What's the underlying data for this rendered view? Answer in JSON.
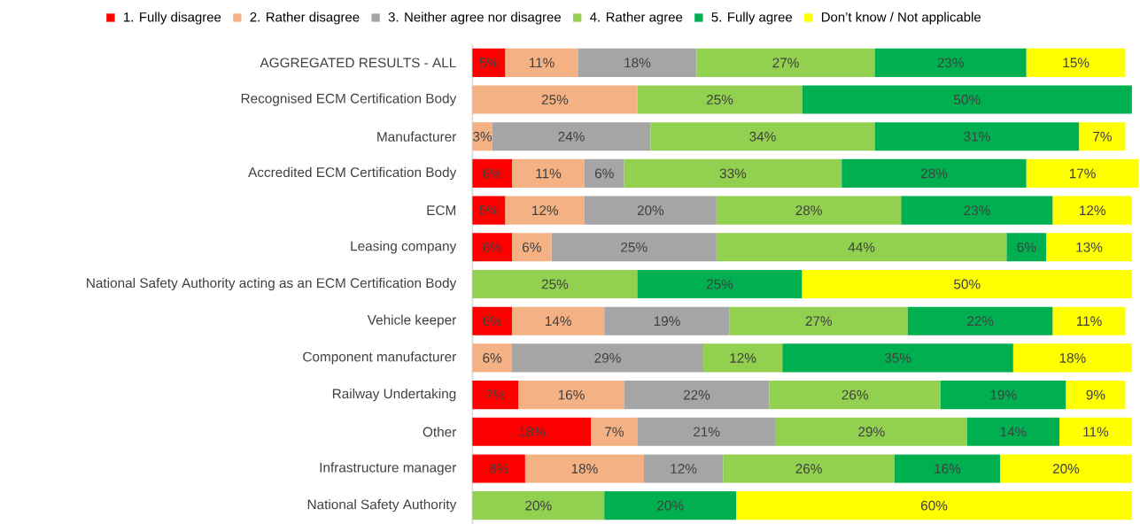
{
  "chart_data": {
    "type": "bar",
    "orientation": "horizontal",
    "stacked": true,
    "legend": "top",
    "categories": [
      "AGGREGATED RESULTS - ALL",
      "Recognised ECM Certification Body",
      "Manufacturer",
      "Accredited ECM Certification Body",
      "ECM",
      "Leasing company",
      "National Safety Authority acting as an ECM Certification Body",
      "Vehicle keeper",
      "Component manufacturer",
      "Railway Undertaking",
      "Other",
      "Infrastructure manager",
      "National Safety Authority"
    ],
    "series": [
      {
        "name": "1. Fully disagree",
        "color": "#ff0000",
        "values": [
          5,
          null,
          null,
          6,
          5,
          6,
          null,
          6,
          null,
          7,
          18,
          8,
          null
        ],
        "value_labels": [
          "5%",
          null,
          null,
          "6%",
          "5%",
          "6%",
          null,
          "6%",
          null,
          "7%",
          "18%",
          "8%",
          null
        ]
      },
      {
        "name": "2. Rather disagree",
        "color": "#f4b183",
        "values": [
          11,
          25,
          3,
          11,
          12,
          6,
          null,
          14,
          6,
          16,
          7,
          18,
          null
        ],
        "value_labels": [
          "11%",
          "25%",
          "3%",
          "11%",
          "12%",
          "6%",
          null,
          "14%",
          "6%",
          "16%",
          "7%",
          "18%",
          null
        ]
      },
      {
        "name": "3. Neither agree nor disagree",
        "color": "#a5a5a5",
        "values": [
          18,
          null,
          24,
          6,
          20,
          25,
          null,
          19,
          29,
          22,
          21,
          12,
          null
        ],
        "value_labels": [
          "18%",
          null,
          "24%",
          "6%",
          "20%",
          "25%",
          null,
          "19%",
          "29%",
          "22%",
          "21%",
          "12%",
          null
        ]
      },
      {
        "name": "4. Rather agree",
        "color": "#92d050",
        "values": [
          27,
          25,
          34,
          33,
          28,
          44,
          25,
          27,
          12,
          26,
          29,
          26,
          20
        ],
        "value_labels": [
          "27%",
          "25%",
          "34%",
          "33%",
          "28%",
          "44%",
          "25%",
          "27%",
          "12%",
          "26%",
          "29%",
          "26%",
          "20%"
        ]
      },
      {
        "name": "5. Fully agree",
        "color": "#00b050",
        "values": [
          23,
          50,
          31,
          28,
          23,
          6,
          25,
          22,
          35,
          19,
          14,
          16,
          20
        ],
        "value_labels": [
          "23%",
          "50%",
          "31%",
          "28%",
          "23%",
          "6%",
          "25%",
          "22%",
          "35%",
          "19%",
          "14%",
          "16%",
          "20%"
        ]
      },
      {
        "name": "Don’t know / Not applicable",
        "color": "#ffff00",
        "values": [
          15,
          null,
          7,
          17,
          12,
          13,
          50,
          11,
          18,
          9,
          11,
          20,
          60
        ],
        "value_labels": [
          "15%",
          null,
          "7%",
          "17%",
          "12%",
          "13%",
          "50%",
          "11%",
          "18%",
          "9%",
          "11%",
          "20%",
          "60%"
        ]
      }
    ]
  }
}
